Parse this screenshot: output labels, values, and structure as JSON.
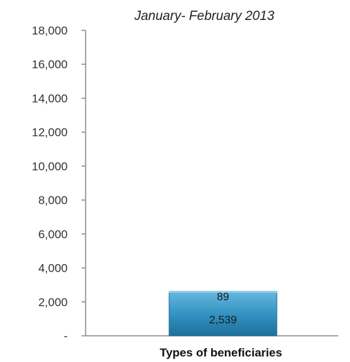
{
  "chart_data": {
    "type": "bar",
    "stacked": true,
    "title": "January- February 2013",
    "xlabel": "Types of beneficiaries",
    "ylabel": "",
    "ylim": [
      0,
      18000
    ],
    "yticks": [
      0,
      2000,
      4000,
      6000,
      8000,
      10000,
      12000,
      14000,
      16000,
      18000
    ],
    "ytick_labels": [
      "-",
      "2,000",
      "4,000",
      "6,000",
      "8,000",
      "10,000",
      "12,000",
      "14,000",
      "16,000",
      "18,000"
    ],
    "categories": [
      ""
    ],
    "series": [
      {
        "values": [
          2539
        ],
        "label": "2,539",
        "color": "#2f8fbf"
      },
      {
        "values": [
          89
        ],
        "label": "89",
        "color": "#9fd0ea"
      }
    ],
    "grid": false,
    "legend": "none"
  }
}
